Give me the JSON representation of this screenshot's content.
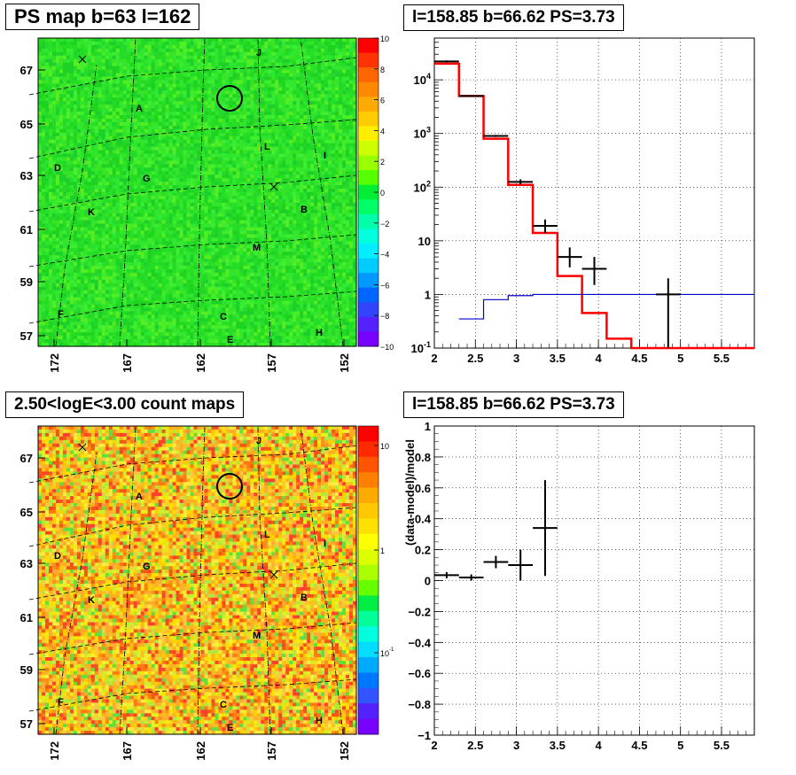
{
  "colors": {
    "map_green": "#22dd22",
    "ps_marker": "#000000",
    "model_line": "#ff0000",
    "bg_line": "#0000cc",
    "data_marker": "#000000"
  },
  "chart_data": [
    {
      "type": "heatmap",
      "title": "PS map b=63 l=162",
      "y_ticks": [
        "67",
        "65",
        "63",
        "61",
        "59",
        "57"
      ],
      "x_ticks": [
        "172",
        "167",
        "162",
        "157",
        "152"
      ],
      "colorbar_ticks": [
        "10",
        "8",
        "6",
        "4",
        "2",
        "0",
        "−2",
        "−4",
        "−6",
        "−8",
        "−10"
      ],
      "region_labels": [
        "J",
        "A",
        "L",
        "I",
        "D",
        "G",
        "B",
        "K",
        "M",
        "F",
        "C",
        "E",
        "H"
      ],
      "marker": "circle"
    },
    {
      "type": "line",
      "title": "l=158.85 b=66.62 PS=3.73",
      "log_y": true,
      "xlim": [
        2,
        5.9
      ],
      "ylim": [
        0.1,
        60000
      ],
      "x_ticks": [
        "2",
        "2.5",
        "3",
        "3.5",
        "4",
        "4.5",
        "5",
        "5.5"
      ],
      "y_ticks": [
        "10^4",
        "10^3",
        "10^2",
        "10",
        "1",
        "10^-1"
      ],
      "series": [
        {
          "style": "step",
          "color": "#ff0000",
          "edges": [
            2,
            2.3,
            2.6,
            2.9,
            3.2,
            3.5,
            3.8,
            4.1,
            4.4,
            4.7,
            5.0,
            5.9
          ],
          "values": [
            20000,
            5000,
            800,
            110,
            14,
            2.2,
            0.45,
            0.15,
            0.1,
            0.1,
            0.1
          ]
        },
        {
          "style": "step",
          "color": "#0000cc",
          "edges": [
            2.3,
            2.6,
            2.9,
            3.2,
            5.9
          ],
          "values": [
            0.35,
            0.8,
            0.95,
            1.0
          ]
        },
        {
          "style": "errorbar",
          "color": "#000000",
          "x": [
            2.15,
            2.45,
            2.75,
            3.05,
            3.35,
            3.65,
            3.95,
            4.85
          ],
          "xerr": [
            0.15,
            0.15,
            0.15,
            0.15,
            0.15,
            0.15,
            0.15,
            0.15
          ],
          "y": [
            22000,
            5000,
            900,
            125,
            19,
            5,
            3,
            1
          ],
          "ylo": [
            21000,
            4800,
            860,
            112,
            14,
            3.2,
            1.5,
            0.1
          ],
          "yhi": [
            23000,
            5200,
            940,
            140,
            25,
            7.5,
            5,
            2
          ]
        }
      ]
    },
    {
      "type": "heatmap",
      "title": "2.50<logE<3.00 count maps",
      "y_ticks": [
        "67",
        "65",
        "63",
        "61",
        "59",
        "57"
      ],
      "x_ticks": [
        "172",
        "167",
        "162",
        "157",
        "152"
      ],
      "colorbar_ticks": [
        "10",
        "1",
        "10^-1"
      ],
      "region_labels": [
        "J",
        "A",
        "L",
        "I",
        "D",
        "G",
        "B",
        "K",
        "M",
        "F",
        "C",
        "E",
        "H"
      ],
      "marker": "circle"
    },
    {
      "type": "scatter",
      "title": "l=158.85 b=66.62 PS=3.73",
      "ylabel": "(data-model)/model",
      "xlim": [
        2,
        5.9
      ],
      "ylim": [
        -1,
        1
      ],
      "x_ticks": [
        "2",
        "2.5",
        "3",
        "3.5",
        "4",
        "4.5",
        "5",
        "5.5"
      ],
      "y_ticks": [
        "1",
        "0.8",
        "0.6",
        "0.4",
        "0.2",
        "0",
        "−0.2",
        "−0.4",
        "−0.6",
        "−0.8",
        "−1"
      ],
      "points": {
        "x": [
          2.15,
          2.45,
          2.75,
          3.05,
          3.35
        ],
        "xerr": [
          0.15,
          0.15,
          0.15,
          0.15,
          0.15
        ],
        "y": [
          0.035,
          0.02,
          0.12,
          0.1,
          0.34
        ],
        "yerr": [
          0.02,
          0.02,
          0.04,
          0.1,
          0.31
        ]
      }
    }
  ]
}
